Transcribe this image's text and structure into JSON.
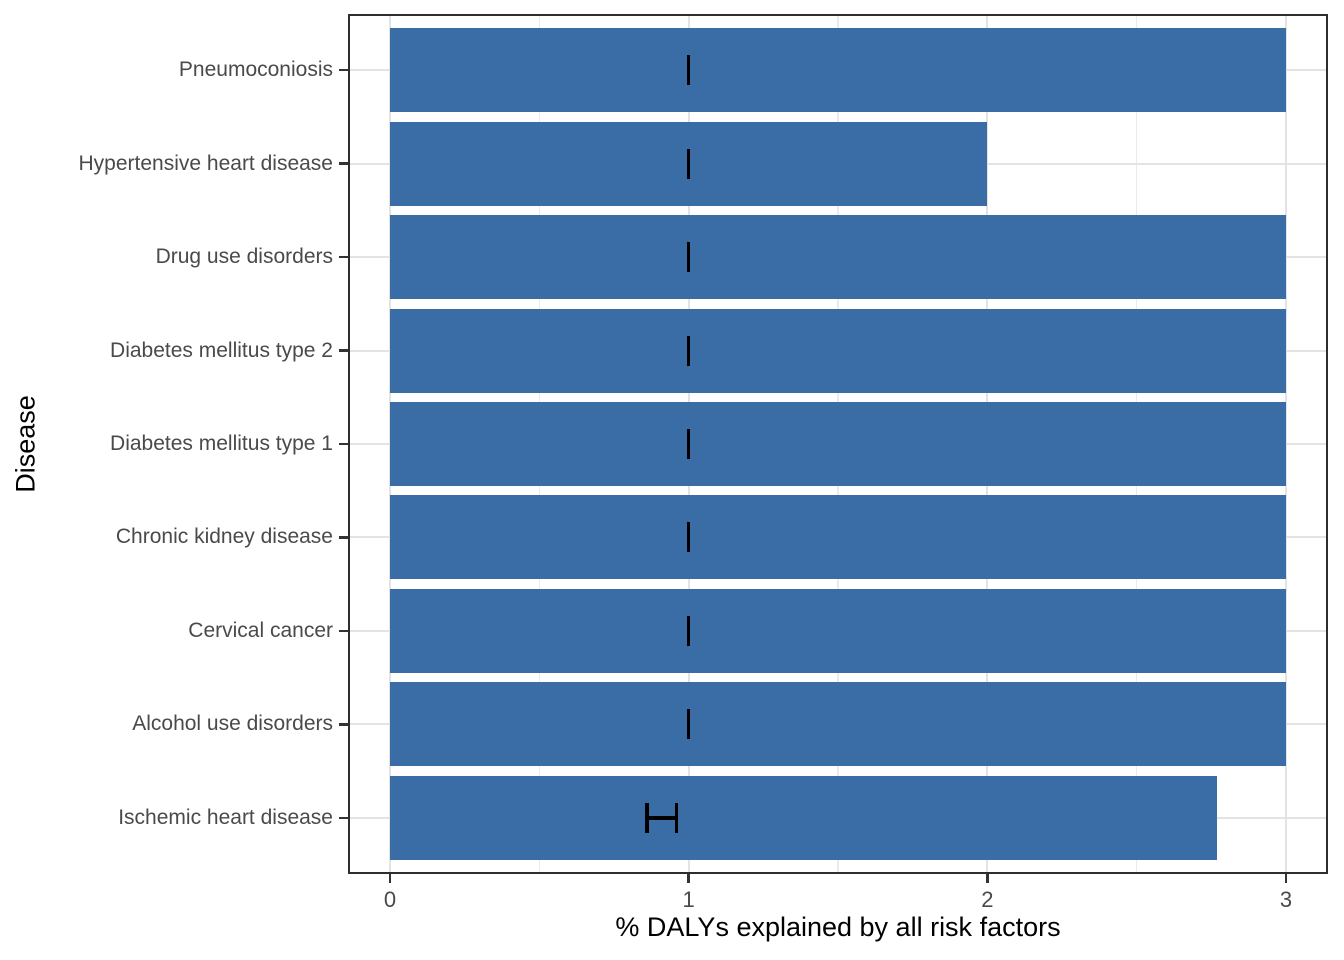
{
  "chart_data": {
    "type": "bar",
    "orientation": "horizontal",
    "title": "",
    "xlabel": "% DALYs explained by all risk factors",
    "ylabel": "Disease",
    "categories": [
      "Pneumoconiosis",
      "Hypertensive heart disease",
      "Drug use disorders",
      "Diabetes mellitus type 2",
      "Diabetes mellitus type 1",
      "Chronic kidney disease",
      "Cervical cancer",
      "Alcohol use disorders",
      "Ischemic heart disease"
    ],
    "values": [
      3.0,
      2.0,
      3.0,
      3.0,
      3.0,
      3.0,
      3.0,
      3.0,
      2.77
    ],
    "error_bars": [
      {
        "low": 1.0,
        "high": 1.0
      },
      {
        "low": 1.0,
        "high": 1.0
      },
      {
        "low": 1.0,
        "high": 1.0
      },
      {
        "low": 1.0,
        "high": 1.0
      },
      {
        "low": 1.0,
        "high": 1.0
      },
      {
        "low": 1.0,
        "high": 1.0
      },
      {
        "low": 1.0,
        "high": 1.0
      },
      {
        "low": 1.0,
        "high": 1.0
      },
      {
        "low": 0.86,
        "high": 0.96
      }
    ],
    "xlim": [
      -0.14,
      3.14
    ],
    "x_ticks": [
      0,
      1,
      2,
      3
    ],
    "x_tick_labels": [
      "0",
      "1",
      "2",
      "3"
    ],
    "x_minor_gridlines": [
      0.5,
      1.5,
      2.5
    ],
    "grid": true,
    "legend": false,
    "colors": {
      "bar": "#3A6DA6",
      "errorbar": "#000000",
      "grid_major": "#E3E3E3",
      "grid_minor": "#EBEBEB",
      "panel_border": "#2E2E2E",
      "tick_mark": "#333333",
      "tick_label": "#4A4A4A",
      "axis_title": "#000000"
    }
  }
}
